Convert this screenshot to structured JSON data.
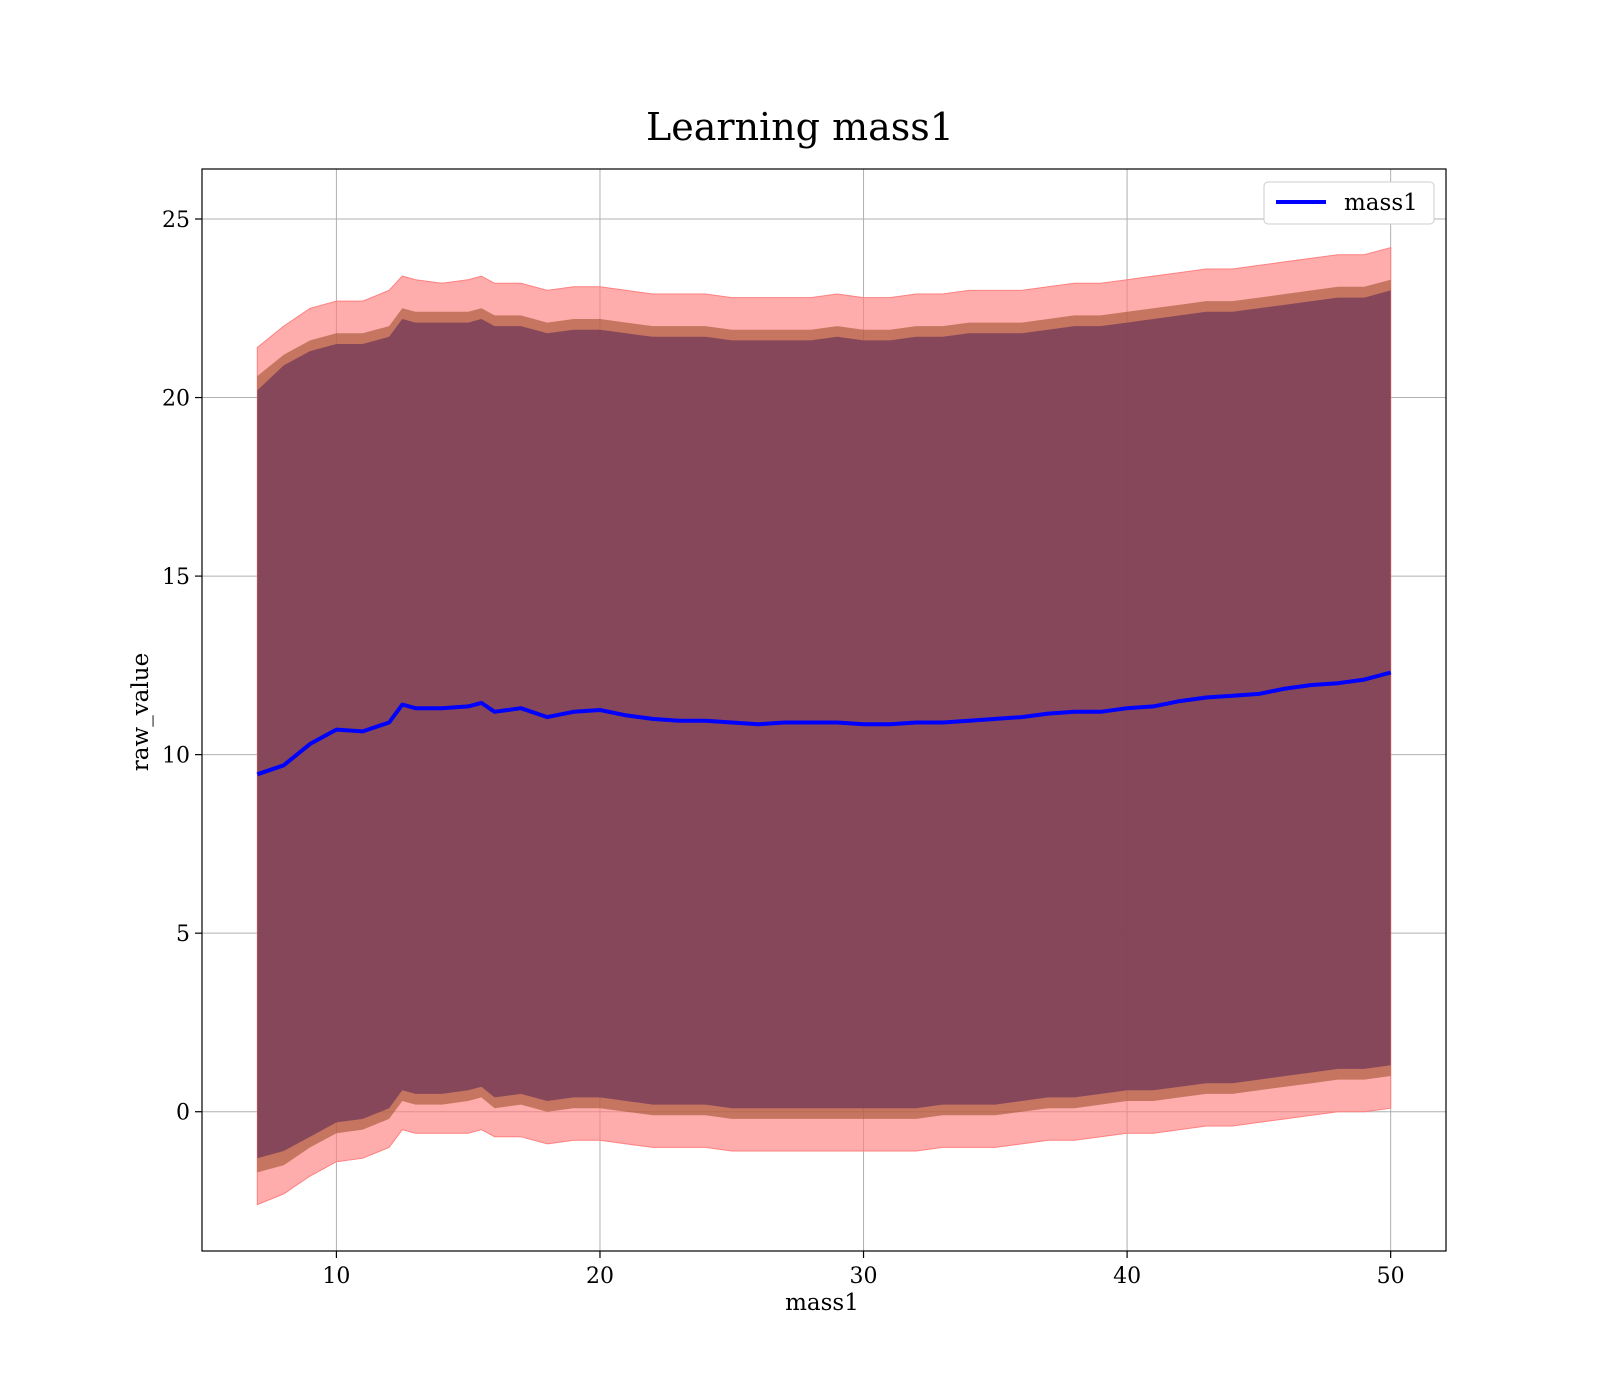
{
  "chart_data": {
    "type": "line",
    "title": "Learning mass1",
    "xlabel": "mass1",
    "ylabel": "raw_value",
    "xlim": [
      4.9,
      52.1
    ],
    "ylim": [
      -3.9,
      26.4
    ],
    "x_ticks": [
      10,
      20,
      30,
      40,
      50
    ],
    "y_ticks": [
      0,
      5,
      10,
      15,
      20,
      25
    ],
    "grid": true,
    "legend": {
      "position": "top-right",
      "entries": [
        "mass1"
      ]
    },
    "colors": {
      "line": "#0000ff",
      "band_outer": "#ff8080",
      "band_mid": "#a0522d",
      "band_inner": "#7a3f5a"
    },
    "series": [
      {
        "name": "mass1",
        "x": [
          7,
          8,
          9,
          10,
          11,
          12,
          12.5,
          13,
          14,
          15,
          15.5,
          16,
          17,
          18,
          19,
          20,
          21,
          22,
          23,
          24,
          25,
          26,
          27,
          28,
          29,
          30,
          31,
          32,
          33,
          34,
          35,
          36,
          37,
          38,
          39,
          40,
          41,
          42,
          43,
          44,
          45,
          46,
          47,
          48,
          49,
          50
        ],
        "y": [
          9.45,
          9.7,
          10.3,
          10.7,
          10.65,
          10.9,
          11.4,
          11.3,
          11.3,
          11.35,
          11.45,
          11.2,
          11.3,
          11.05,
          11.2,
          11.25,
          11.1,
          11.0,
          10.95,
          10.95,
          10.9,
          10.85,
          10.9,
          10.9,
          10.9,
          10.85,
          10.85,
          10.9,
          10.9,
          10.95,
          11.0,
          11.05,
          11.15,
          11.2,
          11.2,
          11.3,
          11.35,
          11.5,
          11.6,
          11.65,
          11.7,
          11.85,
          11.95,
          12.0,
          12.1,
          12.3
        ],
        "band_outer_upper": [
          21.4,
          22.0,
          22.5,
          22.7,
          22.7,
          23.0,
          23.4,
          23.3,
          23.2,
          23.3,
          23.4,
          23.2,
          23.2,
          23.0,
          23.1,
          23.1,
          23.0,
          22.9,
          22.9,
          22.9,
          22.8,
          22.8,
          22.8,
          22.8,
          22.9,
          22.8,
          22.8,
          22.9,
          22.9,
          23.0,
          23.0,
          23.0,
          23.1,
          23.2,
          23.2,
          23.3,
          23.4,
          23.5,
          23.6,
          23.6,
          23.7,
          23.8,
          23.9,
          24.0,
          24.0,
          24.2
        ],
        "band_outer_lower": [
          -2.6,
          -2.3,
          -1.8,
          -1.4,
          -1.3,
          -1.0,
          -0.5,
          -0.6,
          -0.6,
          -0.6,
          -0.5,
          -0.7,
          -0.7,
          -0.9,
          -0.8,
          -0.8,
          -0.9,
          -1.0,
          -1.0,
          -1.0,
          -1.1,
          -1.1,
          -1.1,
          -1.1,
          -1.1,
          -1.1,
          -1.1,
          -1.1,
          -1.0,
          -1.0,
          -1.0,
          -0.9,
          -0.8,
          -0.8,
          -0.7,
          -0.6,
          -0.6,
          -0.5,
          -0.4,
          -0.4,
          -0.3,
          -0.2,
          -0.1,
          0.0,
          0.0,
          0.1
        ],
        "band_mid_upper": [
          20.6,
          21.2,
          21.6,
          21.8,
          21.8,
          22.0,
          22.5,
          22.4,
          22.4,
          22.4,
          22.5,
          22.3,
          22.3,
          22.1,
          22.2,
          22.2,
          22.1,
          22.0,
          22.0,
          22.0,
          21.9,
          21.9,
          21.9,
          21.9,
          22.0,
          21.9,
          21.9,
          22.0,
          22.0,
          22.1,
          22.1,
          22.1,
          22.2,
          22.3,
          22.3,
          22.4,
          22.5,
          22.6,
          22.7,
          22.7,
          22.8,
          22.9,
          23.0,
          23.1,
          23.1,
          23.3
        ],
        "band_mid_lower": [
          -1.7,
          -1.5,
          -1.0,
          -0.6,
          -0.5,
          -0.2,
          0.3,
          0.2,
          0.2,
          0.3,
          0.4,
          0.1,
          0.2,
          0.0,
          0.1,
          0.1,
          0.0,
          -0.1,
          -0.1,
          -0.1,
          -0.2,
          -0.2,
          -0.2,
          -0.2,
          -0.2,
          -0.2,
          -0.2,
          -0.2,
          -0.1,
          -0.1,
          -0.1,
          0.0,
          0.1,
          0.1,
          0.2,
          0.3,
          0.3,
          0.4,
          0.5,
          0.5,
          0.6,
          0.7,
          0.8,
          0.9,
          0.9,
          1.0
        ],
        "band_inner_upper": [
          20.2,
          20.9,
          21.3,
          21.5,
          21.5,
          21.7,
          22.2,
          22.1,
          22.1,
          22.1,
          22.2,
          22.0,
          22.0,
          21.8,
          21.9,
          21.9,
          21.8,
          21.7,
          21.7,
          21.7,
          21.6,
          21.6,
          21.6,
          21.6,
          21.7,
          21.6,
          21.6,
          21.7,
          21.7,
          21.8,
          21.8,
          21.8,
          21.9,
          22.0,
          22.0,
          22.1,
          22.2,
          22.3,
          22.4,
          22.4,
          22.5,
          22.6,
          22.7,
          22.8,
          22.8,
          23.0
        ],
        "band_inner_lower": [
          -1.3,
          -1.1,
          -0.7,
          -0.3,
          -0.2,
          0.1,
          0.6,
          0.5,
          0.5,
          0.6,
          0.7,
          0.4,
          0.5,
          0.3,
          0.4,
          0.4,
          0.3,
          0.2,
          0.2,
          0.2,
          0.1,
          0.1,
          0.1,
          0.1,
          0.1,
          0.1,
          0.1,
          0.1,
          0.2,
          0.2,
          0.2,
          0.3,
          0.4,
          0.4,
          0.5,
          0.6,
          0.6,
          0.7,
          0.8,
          0.8,
          0.9,
          1.0,
          1.1,
          1.2,
          1.2,
          1.3
        ]
      }
    ]
  }
}
